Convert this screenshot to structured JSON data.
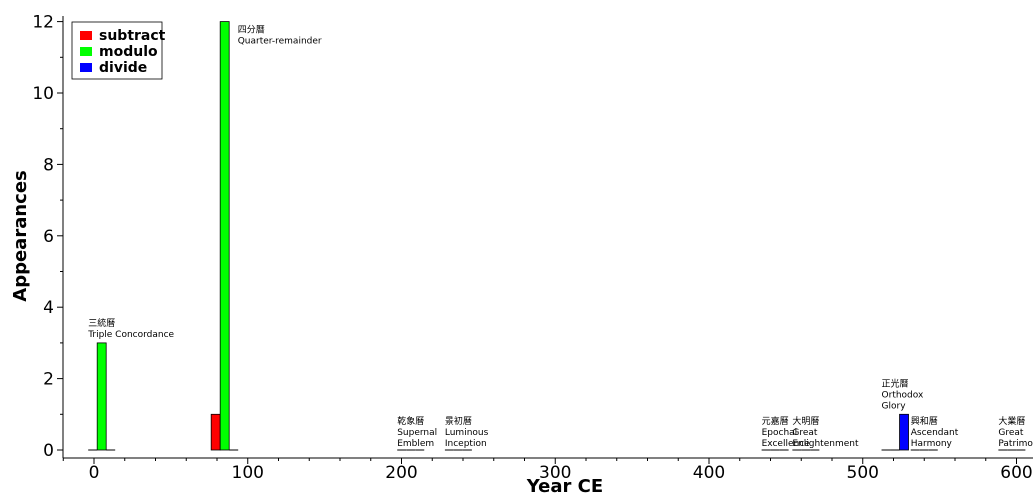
{
  "chart_data": {
    "type": "bar",
    "xlabel": "Year CE",
    "ylabel": "Appearances",
    "xlim": [
      -20,
      605
    ],
    "ylim": [
      0,
      12
    ],
    "x_ticks": [
      0,
      100,
      200,
      300,
      400,
      500,
      600
    ],
    "y_ticks": [
      0,
      2,
      4,
      6,
      8,
      10,
      12
    ],
    "legend_position": "top-left",
    "series": [
      {
        "name": "subtract",
        "color": "#ff0000"
      },
      {
        "name": "modulo",
        "color": "#00ff00"
      },
      {
        "name": "divide",
        "color": "#0000ff"
      }
    ],
    "calendars": [
      {
        "year": 5,
        "values": [
          0,
          3,
          0
        ],
        "label_zh": "三統曆",
        "label_en": [
          "Triple Concordance"
        ]
      },
      {
        "year": 85,
        "values": [
          1,
          12,
          0
        ],
        "label_zh": "四分曆",
        "label_en": [
          "Quarter-remainder"
        ]
      },
      {
        "year": 206,
        "values": [
          0,
          0,
          0
        ],
        "label_zh": "乾象曆",
        "label_en": [
          "Supernal",
          "Emblem"
        ]
      },
      {
        "year": 237,
        "values": [
          0,
          0,
          0
        ],
        "label_zh": "景初曆",
        "label_en": [
          "Luminous",
          "Inception"
        ]
      },
      {
        "year": 443,
        "values": [
          0,
          0,
          0
        ],
        "label_zh": "元嘉曆",
        "label_en": [
          "Epochal",
          "Excellence"
        ]
      },
      {
        "year": 463,
        "values": [
          0,
          0,
          0
        ],
        "label_zh": "大明曆",
        "label_en": [
          "Great",
          "Enlightenment"
        ]
      },
      {
        "year": 521,
        "values": [
          0,
          0,
          1
        ],
        "label_zh": "正光曆",
        "label_en": [
          "Orthodox",
          "Glory"
        ]
      },
      {
        "year": 540,
        "values": [
          0,
          0,
          0
        ],
        "label_zh": "興和曆",
        "label_en": [
          "Ascendant",
          "Harmony"
        ]
      },
      {
        "year": 597,
        "values": [
          0,
          0,
          0
        ],
        "label_zh": "大業曆",
        "label_en": [
          "Great",
          "Patrimony"
        ]
      }
    ]
  }
}
